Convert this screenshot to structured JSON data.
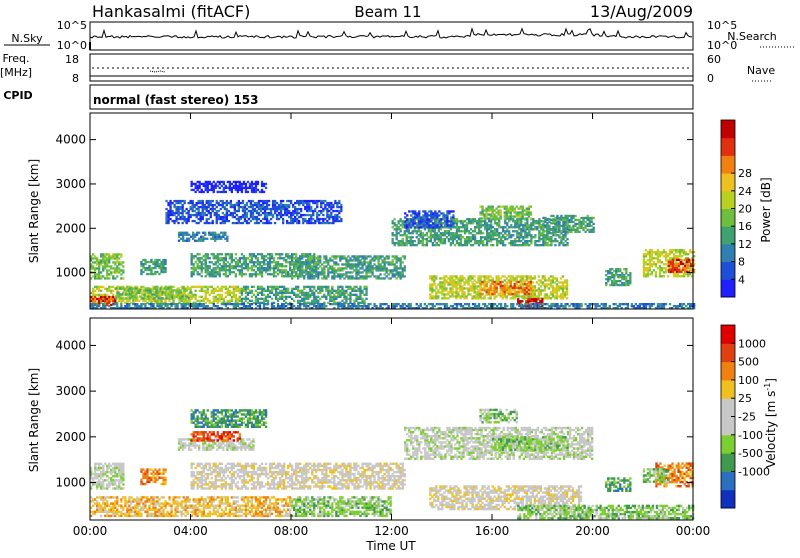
{
  "header": {
    "station": "Hankasalmi (fitACF)",
    "beam": "Beam 11",
    "date": "13/Aug/2009"
  },
  "noise_panel": {
    "left_label": "N.Sky",
    "left_ticks": [
      "10^5",
      "10^0"
    ],
    "right_ticks": [
      "10^5",
      "10^0"
    ],
    "right_label": "N.Search"
  },
  "freq_panel": {
    "left_label_1": "Freq.",
    "left_label_2": "[MHz]",
    "left_ticks": [
      "18",
      "8"
    ],
    "right_ticks": [
      "60",
      "0"
    ],
    "right_label": "Nave"
  },
  "cpid_panel": {
    "label": "CPID",
    "program": "normal (fast stereo) 153"
  },
  "time_axis": {
    "label": "Time UT",
    "ticks": [
      "00:00",
      "04:00",
      "08:00",
      "12:00",
      "16:00",
      "20:00",
      "00:00"
    ]
  },
  "chart_data": [
    {
      "type": "heatmap",
      "parameter": "power",
      "ylabel": "Slant Range [km]",
      "y_ticks": [
        1000,
        2000,
        3000,
        4000
      ],
      "ylim": [
        180,
        4600
      ],
      "x_hours": [
        0,
        24
      ],
      "colorbar": {
        "label": "Power [dB]",
        "ticks": [
          4,
          8,
          12,
          16,
          20,
          24,
          28
        ],
        "colors": [
          "#1f1fff",
          "#1e4fd9",
          "#2f7fb0",
          "#3fa070",
          "#6fbf3f",
          "#b8d020",
          "#f0c020",
          "#f08010",
          "#e03010",
          "#c00000"
        ]
      },
      "bands": [
        {
          "t_start": 0.0,
          "t_end": 1.3,
          "range_low": 850,
          "range_high": 1400,
          "level": 4
        },
        {
          "t_start": 0.0,
          "t_end": 6.0,
          "range_low": 300,
          "range_high": 700,
          "level": 5
        },
        {
          "t_start": 0.0,
          "t_end": 1.0,
          "range_low": 250,
          "range_high": 450,
          "level": 8
        },
        {
          "t_start": 1.0,
          "t_end": 4.0,
          "range_low": 400,
          "range_high": 650,
          "level": 4
        },
        {
          "t_start": 2.0,
          "t_end": 3.0,
          "range_low": 950,
          "range_high": 1300,
          "level": 3
        },
        {
          "t_start": 3.5,
          "t_end": 5.5,
          "range_low": 1700,
          "range_high": 1900,
          "level": 2
        },
        {
          "t_start": 4.0,
          "t_end": 9.0,
          "range_low": 900,
          "range_high": 1400,
          "level": 3
        },
        {
          "t_start": 8.0,
          "t_end": 12.5,
          "range_low": 850,
          "range_high": 1350,
          "level": 3
        },
        {
          "t_start": 6.0,
          "t_end": 11.0,
          "range_low": 300,
          "range_high": 700,
          "level": 3
        },
        {
          "t_start": 3.0,
          "t_end": 10.0,
          "range_low": 2100,
          "range_high": 2600,
          "level": 1
        },
        {
          "t_start": 12.0,
          "t_end": 19.0,
          "range_low": 1600,
          "range_high": 2200,
          "level": 3
        },
        {
          "t_start": 15.5,
          "t_end": 17.5,
          "range_low": 2200,
          "range_high": 2500,
          "level": 4
        },
        {
          "t_start": 18.0,
          "t_end": 20.0,
          "range_low": 1900,
          "range_high": 2300,
          "level": 3
        },
        {
          "t_start": 13.5,
          "t_end": 19.0,
          "range_low": 400,
          "range_high": 900,
          "level": 5
        },
        {
          "t_start": 15.5,
          "t_end": 17.5,
          "range_low": 500,
          "range_high": 800,
          "level": 7
        },
        {
          "t_start": 17.0,
          "t_end": 18.0,
          "range_low": 200,
          "range_high": 400,
          "level": 9
        },
        {
          "t_start": 20.5,
          "t_end": 21.5,
          "range_low": 700,
          "range_high": 1100,
          "level": 3
        },
        {
          "t_start": 22.0,
          "t_end": 24.0,
          "range_low": 900,
          "range_high": 1500,
          "level": 5
        },
        {
          "t_start": 23.0,
          "t_end": 24.0,
          "range_low": 1000,
          "range_high": 1300,
          "level": 8
        },
        {
          "t_start": 0.0,
          "t_end": 24.0,
          "range_low": 180,
          "range_high": 300,
          "level": 2
        },
        {
          "t_start": 12.5,
          "t_end": 14.5,
          "range_low": 2000,
          "range_high": 2400,
          "level": 1
        },
        {
          "t_start": 4.0,
          "t_end": 7.0,
          "range_low": 2800,
          "range_high": 3050,
          "level": 0
        }
      ]
    },
    {
      "type": "heatmap",
      "parameter": "velocity",
      "ylabel": "Slant Range [km]",
      "y_ticks": [
        1000,
        2000,
        3000,
        4000
      ],
      "ylim": [
        180,
        4600
      ],
      "x_hours": [
        0,
        24
      ],
      "colorbar": {
        "label": "Velocity",
        "unit": "[m s",
        "unit_exp": "-1",
        "unit_close": "]",
        "ticks": [
          1000,
          500,
          100,
          25,
          -25,
          -100,
          -500,
          -1000
        ],
        "colors": [
          "#1030c0",
          "#2a6fc0",
          "#3f9a50",
          "#7ccf30",
          "#c8c8c8",
          "#c8c8c8",
          "#f0c020",
          "#f08010",
          "#e04010",
          "#e00000"
        ]
      },
      "bands": [
        {
          "t_start": 0.0,
          "t_end": 1.3,
          "range_low": 850,
          "range_high": 1400,
          "level": 4
        },
        {
          "t_start": 0.0,
          "t_end": 4.0,
          "range_low": 250,
          "range_high": 700,
          "level": 6
        },
        {
          "t_start": 4.0,
          "t_end": 8.0,
          "range_low": 250,
          "range_high": 700,
          "level": 6
        },
        {
          "t_start": 8.0,
          "t_end": 12.0,
          "range_low": 250,
          "range_high": 700,
          "level": 3
        },
        {
          "t_start": 2.0,
          "t_end": 3.0,
          "range_low": 950,
          "range_high": 1300,
          "level": 7
        },
        {
          "t_start": 4.0,
          "t_end": 12.5,
          "range_low": 850,
          "range_high": 1400,
          "level": 5
        },
        {
          "t_start": 3.5,
          "t_end": 6.5,
          "range_low": 1700,
          "range_high": 1950,
          "level": 4
        },
        {
          "t_start": 4.0,
          "t_end": 7.0,
          "range_low": 2200,
          "range_high": 2600,
          "level": 2
        },
        {
          "t_start": 4.0,
          "t_end": 6.0,
          "range_low": 1900,
          "range_high": 2100,
          "level": 8
        },
        {
          "t_start": 12.5,
          "t_end": 20.0,
          "range_low": 1500,
          "range_high": 2200,
          "level": 4
        },
        {
          "t_start": 16.0,
          "t_end": 19.0,
          "range_low": 1700,
          "range_high": 2000,
          "level": 3
        },
        {
          "t_start": 15.5,
          "t_end": 17.0,
          "range_low": 2300,
          "range_high": 2600,
          "level": 3
        },
        {
          "t_start": 13.5,
          "t_end": 19.5,
          "range_low": 400,
          "range_high": 900,
          "level": 5
        },
        {
          "t_start": 17.0,
          "t_end": 24.0,
          "range_low": 200,
          "range_high": 500,
          "level": 3
        },
        {
          "t_start": 20.5,
          "t_end": 21.5,
          "range_low": 800,
          "range_high": 1100,
          "level": 2
        },
        {
          "t_start": 22.5,
          "t_end": 24.0,
          "range_low": 900,
          "range_high": 1400,
          "level": 7
        },
        {
          "t_start": 22.0,
          "t_end": 23.0,
          "range_low": 1000,
          "range_high": 1300,
          "level": 3
        }
      ]
    }
  ]
}
